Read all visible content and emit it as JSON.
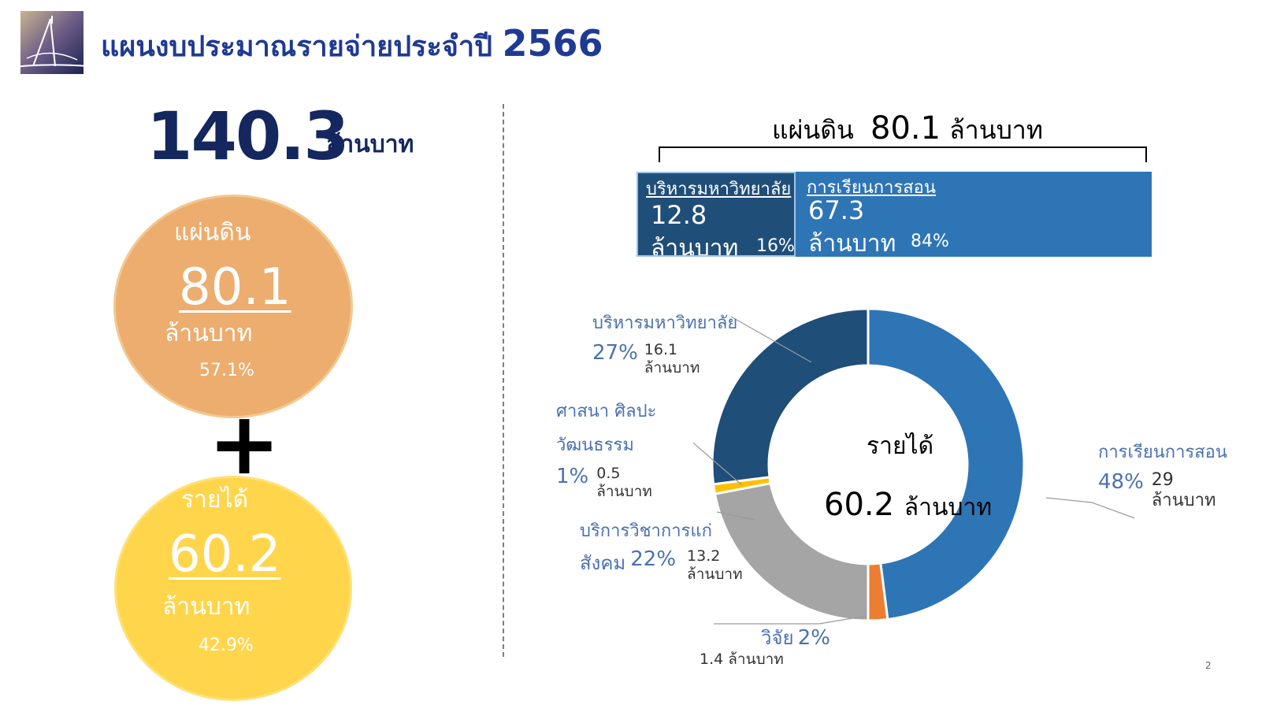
{
  "header": {
    "title": "แผนงบประมาณรายจ่ายประจำปี",
    "year": "2566"
  },
  "summary": {
    "total_value": "140.3",
    "total_unit": "ล้านบาท"
  },
  "circles": {
    "land": {
      "label": "แผ่นดิน",
      "value": "80.1",
      "unit": "ล้านบาท",
      "percent": "57.1%",
      "color": "#ecad6e"
    },
    "plus": "+",
    "income": {
      "label": "รายได้",
      "value": "60.2",
      "unit": "ล้านบาท",
      "percent": "42.9%",
      "color": "#ffd54b"
    }
  },
  "land_allocation": {
    "title": "แผ่นดิน",
    "value": "80.1",
    "unit": "ล้านบาท",
    "segments": [
      {
        "label": "บริหารมหาวิทยาลัย",
        "value": "12.8",
        "unit": "ล้านบาท",
        "percent": "16%",
        "share": 16,
        "color": "#1f4e79"
      },
      {
        "label": "การเรียนการสอน",
        "value": "67.3",
        "unit": "ล้านบาท",
        "percent": "84%",
        "share": 84,
        "color": "#2e75b6"
      }
    ]
  },
  "chart_data": {
    "type": "pie",
    "center_label": "รายได้",
    "center_value": "60.2",
    "center_unit": "ล้านบาท",
    "slices": [
      {
        "name": "การเรียนการสอน",
        "percent": 48,
        "percent_label": "48%",
        "value": 29,
        "value_label": "29",
        "unit": "ล้านบาท",
        "color": "#2e75b6"
      },
      {
        "name": "วิจัย",
        "percent": 2,
        "percent_label": "2%",
        "value": 1.4,
        "value_label": "1.4",
        "unit": "ล้านบาท",
        "color": "#ed7d31"
      },
      {
        "name_line1": "บริการวิชาการแก่",
        "name_line2": "สังคม",
        "percent": 22,
        "percent_label": "22%",
        "value": 13.2,
        "value_label": "13.2",
        "unit": "ล้านบาท",
        "color": "#a5a5a5"
      },
      {
        "name_line1": "ศาสนา ศิลปะ",
        "name_line2": "วัฒนธรรม",
        "percent": 1,
        "percent_label": "1%",
        "value": 0.5,
        "value_label": "0.5",
        "unit": "ล้านบาท",
        "color": "#ffc000"
      },
      {
        "name": "บริหารมหาวิทยาลัย",
        "percent": 27,
        "percent_label": "27%",
        "value": 16.1,
        "value_label": "16.1",
        "unit": "ล้านบาท",
        "color": "#1f4e79"
      }
    ]
  },
  "footer": {
    "page_number": "2"
  }
}
